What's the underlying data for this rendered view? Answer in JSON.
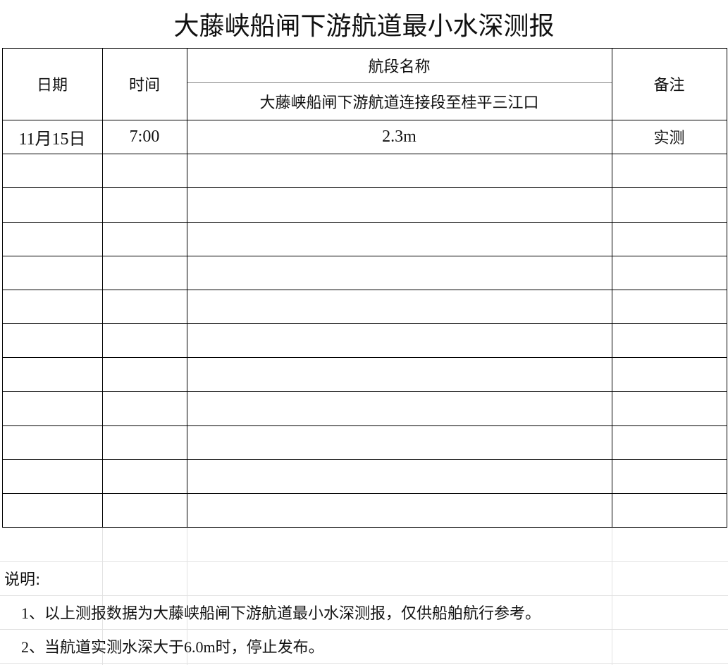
{
  "title": "大藤峡船闸下游航道最小水深测报",
  "header": {
    "date": "日期",
    "time": "时间",
    "section_group": "航段名称",
    "section_name": "大藤峡船闸下游航道连接段至桂平三江口",
    "remark": "备注"
  },
  "rows": [
    {
      "date": "11月15日",
      "time": "7:00",
      "depth": "2.3m",
      "remark": "实测"
    }
  ],
  "notes": {
    "label": "说明:",
    "items": [
      "1、以上测报数据为大藤峡船闸下游航道最小水深测报，仅供船舶航行参考。",
      "2、当航道实测水深大于6.0m时，停止发布。"
    ]
  }
}
